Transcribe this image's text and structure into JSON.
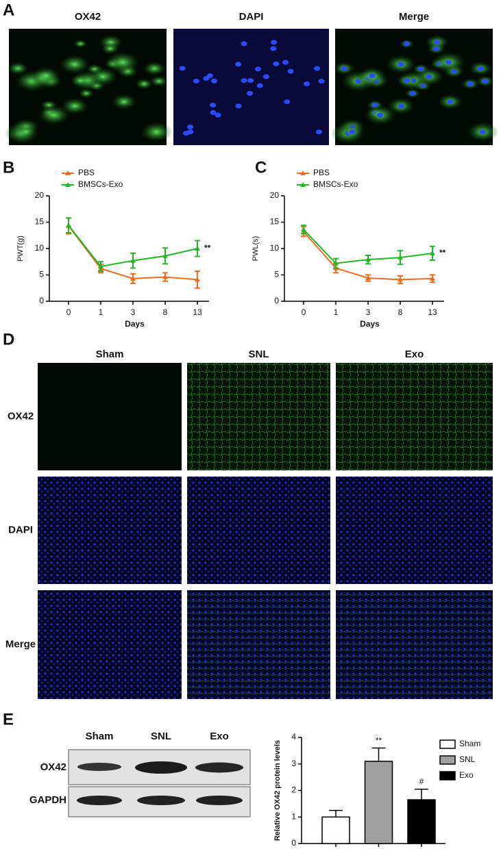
{
  "panel_a": {
    "label": "A",
    "columns": [
      "OX42",
      "DAPI",
      "Merge"
    ]
  },
  "panel_d": {
    "label": "D",
    "columns": [
      "Sham",
      "SNL",
      "Exo"
    ],
    "rows": [
      "OX42",
      "DAPI",
      "Merge"
    ]
  },
  "panel_e": {
    "label": "E",
    "lanes": [
      "Sham",
      "SNL",
      "Exo"
    ],
    "rows": [
      "OX42",
      "GAPDH"
    ]
  },
  "chart_data": [
    {
      "type": "line",
      "panel_label": "B",
      "x_label": "Days",
      "y_label": "PWT(g)",
      "categories": [
        "0",
        "1",
        "3",
        "8",
        "13"
      ],
      "series": [
        {
          "name": "PBS",
          "color": "#f06a1e",
          "values": [
            14.3,
            6.2,
            4.3,
            4.6,
            4.1
          ],
          "errors": [
            1.5,
            0.8,
            0.9,
            0.8,
            1.6
          ]
        },
        {
          "name": "BMSCs-Exo",
          "color": "#22b722",
          "values": [
            14.4,
            6.6,
            7.7,
            8.6,
            10.0
          ],
          "errors": [
            1.4,
            0.9,
            1.4,
            1.5,
            1.5
          ]
        }
      ],
      "annotation": "**",
      "ylim": [
        0,
        20
      ],
      "yticks": [
        0,
        5,
        10,
        15,
        20
      ]
    },
    {
      "type": "line",
      "panel_label": "C",
      "x_label": "Days",
      "y_label": "PWL(s)",
      "categories": [
        "0",
        "1",
        "3",
        "8",
        "13"
      ],
      "series": [
        {
          "name": "PBS",
          "color": "#f06a1e",
          "values": [
            13.2,
            6.3,
            4.4,
            4.1,
            4.3
          ],
          "errors": [
            0.9,
            0.9,
            0.6,
            0.7,
            0.7
          ]
        },
        {
          "name": "BMSCs-Exo",
          "color": "#22b722",
          "values": [
            13.6,
            7.2,
            7.9,
            8.3,
            9.1
          ],
          "errors": [
            0.8,
            0.9,
            0.8,
            1.3,
            1.3
          ]
        }
      ],
      "annotation": "**",
      "ylim": [
        0,
        20
      ],
      "yticks": [
        0,
        5,
        10,
        15,
        20
      ]
    },
    {
      "type": "bar",
      "y_label": "Relative OX42 protein levels",
      "series": [
        {
          "name": "Sham",
          "color": "#ffffff",
          "values": [
            1.0
          ],
          "errors": [
            0.25
          ]
        },
        {
          "name": "SNL",
          "color": "#a0a0a0",
          "values": [
            3.1
          ],
          "errors": [
            0.5
          ],
          "annotation": "**"
        },
        {
          "name": "Exo",
          "color": "#000000",
          "values": [
            1.65
          ],
          "errors": [
            0.4
          ],
          "annotation": "#"
        }
      ],
      "ylim": [
        0,
        4
      ],
      "yticks": [
        0,
        1,
        2,
        3,
        4
      ]
    }
  ]
}
